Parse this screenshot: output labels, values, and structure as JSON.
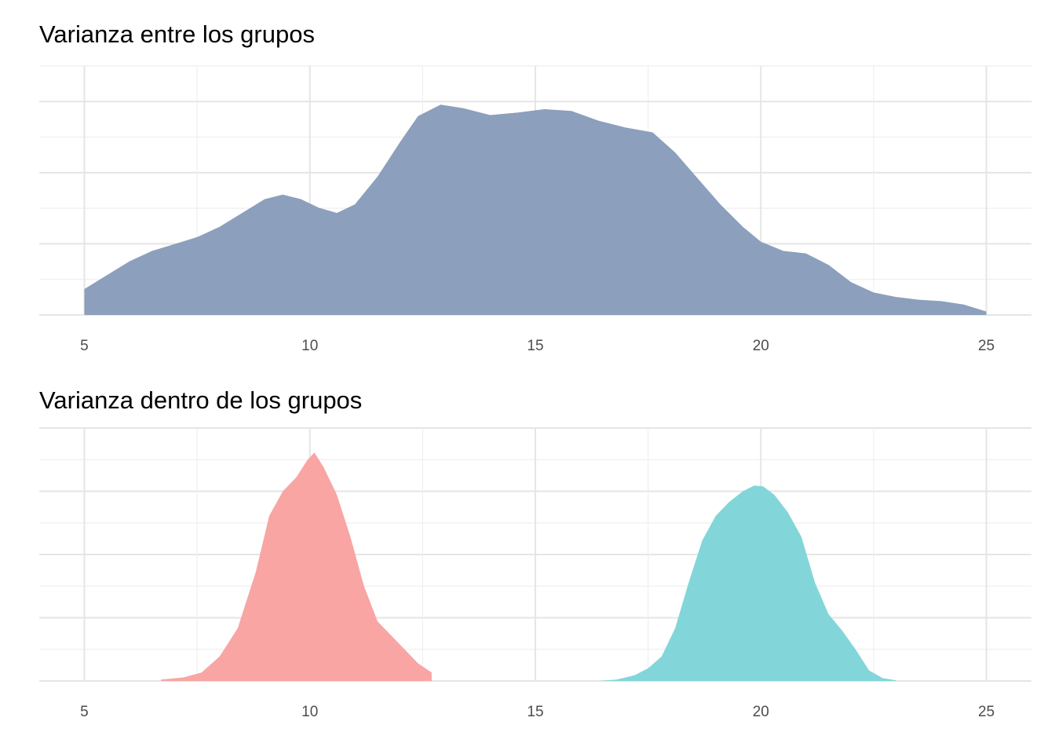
{
  "chart_data": [
    {
      "type": "area",
      "title": "Varianza entre los grupos",
      "xlabel": "",
      "ylabel": "",
      "xlim": [
        4,
        26
      ],
      "ylim": [
        0,
        0.072
      ],
      "x_ticks": [
        5,
        10,
        15,
        20,
        25
      ],
      "grid": true,
      "legend": "none",
      "series": [
        {
          "color": "#8a9dbb",
          "x": [
            5.0,
            5.5,
            6.0,
            6.5,
            7.0,
            7.5,
            8.0,
            8.5,
            9.0,
            9.4,
            9.8,
            10.2,
            10.6,
            11.0,
            11.5,
            12.0,
            12.4,
            12.9,
            13.4,
            14.0,
            14.6,
            15.2,
            15.8,
            16.4,
            17.0,
            17.6,
            18.1,
            18.6,
            19.1,
            19.6,
            20.0,
            20.5,
            21.0,
            21.5,
            22.0,
            22.5,
            23.0,
            23.5,
            24.0,
            24.5,
            25.0
          ],
          "y": [
            0.0075,
            0.0115,
            0.0155,
            0.0185,
            0.0205,
            0.0225,
            0.0255,
            0.0295,
            0.0335,
            0.0348,
            0.0335,
            0.031,
            0.0295,
            0.032,
            0.04,
            0.05,
            0.0575,
            0.0608,
            0.0598,
            0.0578,
            0.0585,
            0.0595,
            0.059,
            0.0562,
            0.0542,
            0.0528,
            0.047,
            0.0395,
            0.032,
            0.0255,
            0.0212,
            0.0185,
            0.0178,
            0.0145,
            0.0095,
            0.0065,
            0.0052,
            0.0044,
            0.004,
            0.003,
            0.001
          ]
        }
      ]
    },
    {
      "type": "area",
      "title": "Varianza dentro de los grupos",
      "xlabel": "",
      "ylabel": "",
      "xlim": [
        4,
        26
      ],
      "ylim": [
        0,
        0.36
      ],
      "x_ticks": [
        5,
        10,
        15,
        20,
        25
      ],
      "grid": true,
      "legend": "none",
      "series": [
        {
          "color": "#f8a3a1",
          "x": [
            6.7,
            7.2,
            7.6,
            8.0,
            8.4,
            8.8,
            9.1,
            9.4,
            9.7,
            9.95,
            10.1,
            10.3,
            10.6,
            10.9,
            11.2,
            11.5,
            11.8,
            12.1,
            12.4,
            12.7
          ],
          "y": [
            0.002,
            0.005,
            0.012,
            0.035,
            0.075,
            0.155,
            0.235,
            0.27,
            0.29,
            0.315,
            0.325,
            0.305,
            0.265,
            0.205,
            0.135,
            0.085,
            0.065,
            0.045,
            0.025,
            0.012
          ]
        },
        {
          "color": "#80d5d8",
          "x": [
            16.4,
            16.8,
            17.2,
            17.5,
            17.8,
            18.1,
            18.4,
            18.7,
            19.0,
            19.3,
            19.6,
            19.85,
            20.05,
            20.3,
            20.6,
            20.9,
            21.2,
            21.5,
            21.8,
            22.1,
            22.4,
            22.7,
            23.0
          ],
          "y": [
            0.0,
            0.002,
            0.008,
            0.018,
            0.035,
            0.075,
            0.14,
            0.2,
            0.235,
            0.255,
            0.27,
            0.278,
            0.277,
            0.265,
            0.24,
            0.205,
            0.14,
            0.095,
            0.072,
            0.045,
            0.015,
            0.004,
            0.001
          ]
        }
      ]
    }
  ]
}
